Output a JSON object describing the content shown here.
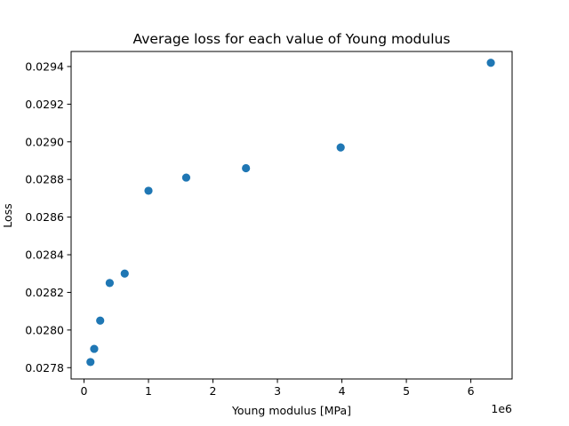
{
  "chart_data": {
    "type": "scatter",
    "title": "Average loss for each value of Young modulus",
    "xlabel": "Young modulus [MPa]",
    "ylabel": "Loss",
    "x_offset_text": "1e6",
    "xlim": [
      -200000,
      6640000
    ],
    "ylim": [
      0.02774,
      0.02948
    ],
    "x_ticks": [
      0,
      1,
      2,
      3,
      4,
      5,
      6
    ],
    "x_tick_labels": [
      "0",
      "1",
      "2",
      "3",
      "4",
      "5",
      "6"
    ],
    "y_ticks": [
      0.0278,
      0.028,
      0.0282,
      0.0284,
      0.0286,
      0.0288,
      0.029,
      0.0292,
      0.0294
    ],
    "y_tick_labels": [
      "0.0278",
      "0.0280",
      "0.0282",
      "0.0284",
      "0.0286",
      "0.0288",
      "0.0290",
      "0.0292",
      "0.0294"
    ],
    "grid": false,
    "legend": "none",
    "marker_color": "#1f77b4",
    "points": [
      {
        "x": 100000,
        "y": 0.02783
      },
      {
        "x": 158000,
        "y": 0.0279
      },
      {
        "x": 251000,
        "y": 0.02805
      },
      {
        "x": 398000,
        "y": 0.02825
      },
      {
        "x": 631000,
        "y": 0.0283
      },
      {
        "x": 1000000,
        "y": 0.02874
      },
      {
        "x": 1585000,
        "y": 0.02881
      },
      {
        "x": 2512000,
        "y": 0.02886
      },
      {
        "x": 3981000,
        "y": 0.02897
      },
      {
        "x": 6310000,
        "y": 0.02942
      }
    ]
  }
}
